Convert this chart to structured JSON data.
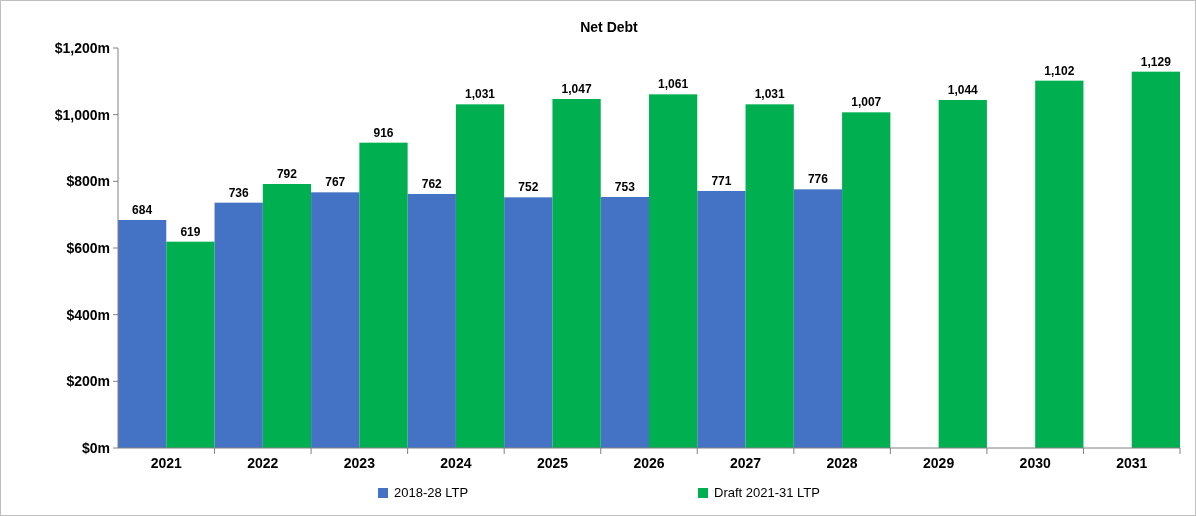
{
  "chart_data": {
    "type": "bar",
    "title": "Net Debt",
    "categories": [
      "2021",
      "2022",
      "2023",
      "2024",
      "2025",
      "2026",
      "2027",
      "2028",
      "2029",
      "2030",
      "2031"
    ],
    "series": [
      {
        "name": "2018-28 LTP",
        "color": "#4472c4",
        "values": [
          684,
          736,
          767,
          762,
          752,
          753,
          771,
          776,
          null,
          null,
          null
        ],
        "value_labels": [
          "684",
          "736",
          "767",
          "762",
          "752",
          "753",
          "771",
          "776",
          null,
          null,
          null
        ]
      },
      {
        "name": "Draft 2021-31 LTP",
        "color": "#00b050",
        "values": [
          619,
          792,
          916,
          1031,
          1047,
          1061,
          1031,
          1007,
          1044,
          1102,
          1129
        ],
        "value_labels": [
          "619",
          "792",
          "916",
          "1,031",
          "1,047",
          "1,061",
          "1,031",
          "1,007",
          "1,044",
          "1,102",
          "1,129"
        ]
      }
    ],
    "ylim": [
      0,
      1200
    ],
    "yticks": [
      {
        "value": 0,
        "label": "$0m"
      },
      {
        "value": 200,
        "label": "$200m"
      },
      {
        "value": 400,
        "label": "$400m"
      },
      {
        "value": 600,
        "label": "$600m"
      },
      {
        "value": 800,
        "label": "$800m"
      },
      {
        "value": 1000,
        "label": "$1,000m"
      },
      {
        "value": 1200,
        "label": "$1,200m"
      }
    ],
    "legend": "bottom"
  }
}
